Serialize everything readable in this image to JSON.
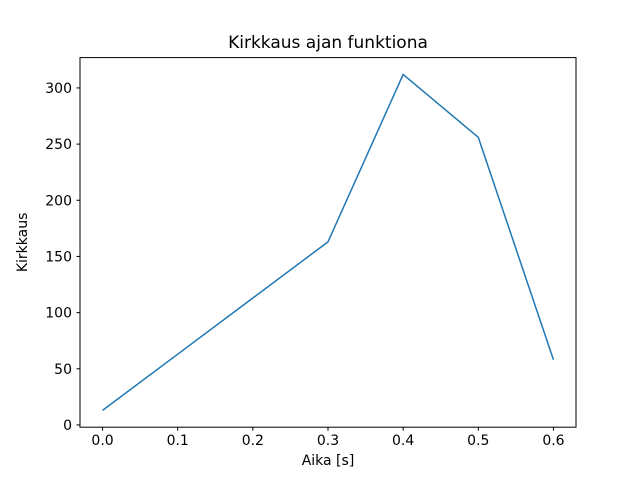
{
  "chart_data": {
    "type": "line",
    "title": "Kirkkaus ajan funktiona",
    "xlabel": "Aika [s]",
    "ylabel": "Kirkkaus",
    "x": [
      0.0,
      0.1,
      0.2,
      0.3,
      0.4,
      0.5,
      0.6
    ],
    "values": [
      13,
      63,
      113,
      163,
      312,
      256,
      58
    ],
    "series_name": "Kirkkaus",
    "xlim": [
      -0.03,
      0.63
    ],
    "ylim": [
      -2,
      327
    ],
    "xticks": [
      "0.0",
      "0.1",
      "0.2",
      "0.3",
      "0.4",
      "0.5",
      "0.6"
    ],
    "yticks": [
      0,
      50,
      100,
      150,
      200,
      250,
      300
    ],
    "line_color": "#1f77b4",
    "spine_color": "#000000",
    "background_color": "#ffffff",
    "grid": false,
    "legend": "none"
  }
}
